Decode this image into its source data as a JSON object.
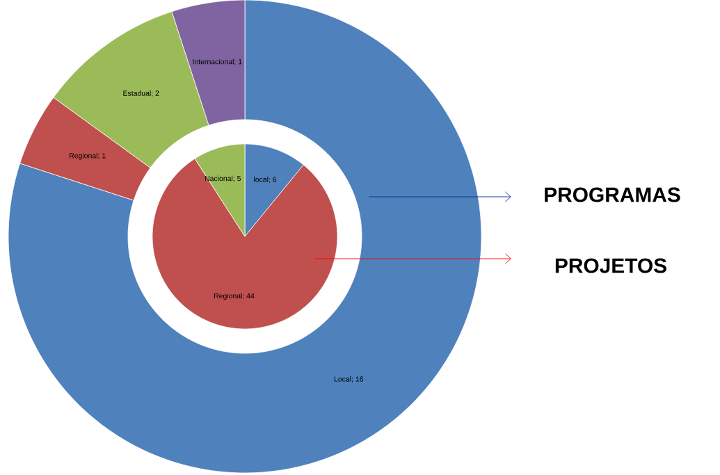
{
  "chart_data": [
    {
      "type": "donut",
      "title": "PROGRAMAS",
      "categories": [
        "Local",
        "Regional",
        "Estadual",
        "Internacional"
      ],
      "values": [
        16,
        1,
        2,
        1
      ],
      "colors": [
        "#4f81bd",
        "#c0504d",
        "#9bbb59",
        "#8064a2"
      ],
      "value_labels": [
        "; 16",
        "; 1",
        "; 2",
        "; 1"
      ]
    },
    {
      "type": "pie",
      "title": "PROJETOS",
      "categories": [
        "local",
        "Regional",
        "Nacional"
      ],
      "values": [
        6,
        44,
        5
      ],
      "colors": [
        "#4f81bd",
        "#c0504d",
        "#9bbb59"
      ],
      "value_labels": [
        "; 6",
        "; 44",
        "; 5"
      ]
    }
  ]
}
